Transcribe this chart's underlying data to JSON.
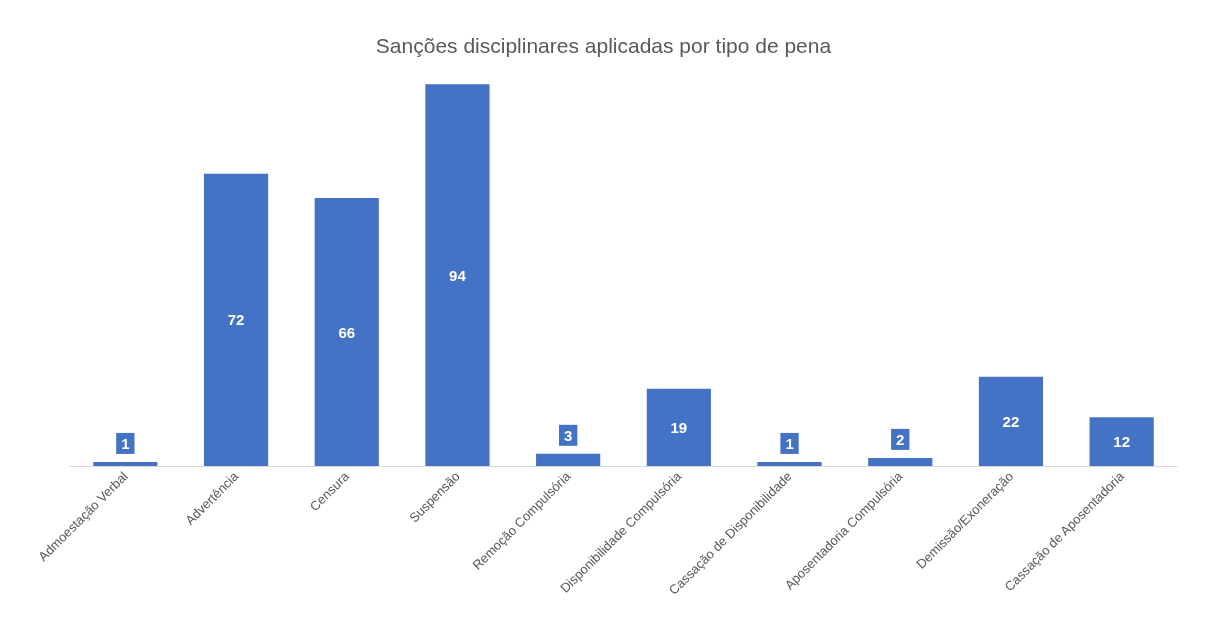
{
  "chart_data": {
    "type": "bar",
    "title": "Sanções disciplinares aplicadas por tipo de pena",
    "categories": [
      "Admoestação Verbal",
      "Advertência",
      "Censura",
      "Suspensão",
      "Remoção Compulsória",
      "Disponibilidade Compulsória",
      "Cassação de Disponibilidade",
      "Aposentadoria Compulsória",
      "Demissão/Exoneração",
      "Cassação de Aposentadoria"
    ],
    "values": [
      1,
      72,
      66,
      94,
      3,
      19,
      1,
      2,
      22,
      12
    ],
    "color": "#4472c4",
    "data_labels": true
  }
}
